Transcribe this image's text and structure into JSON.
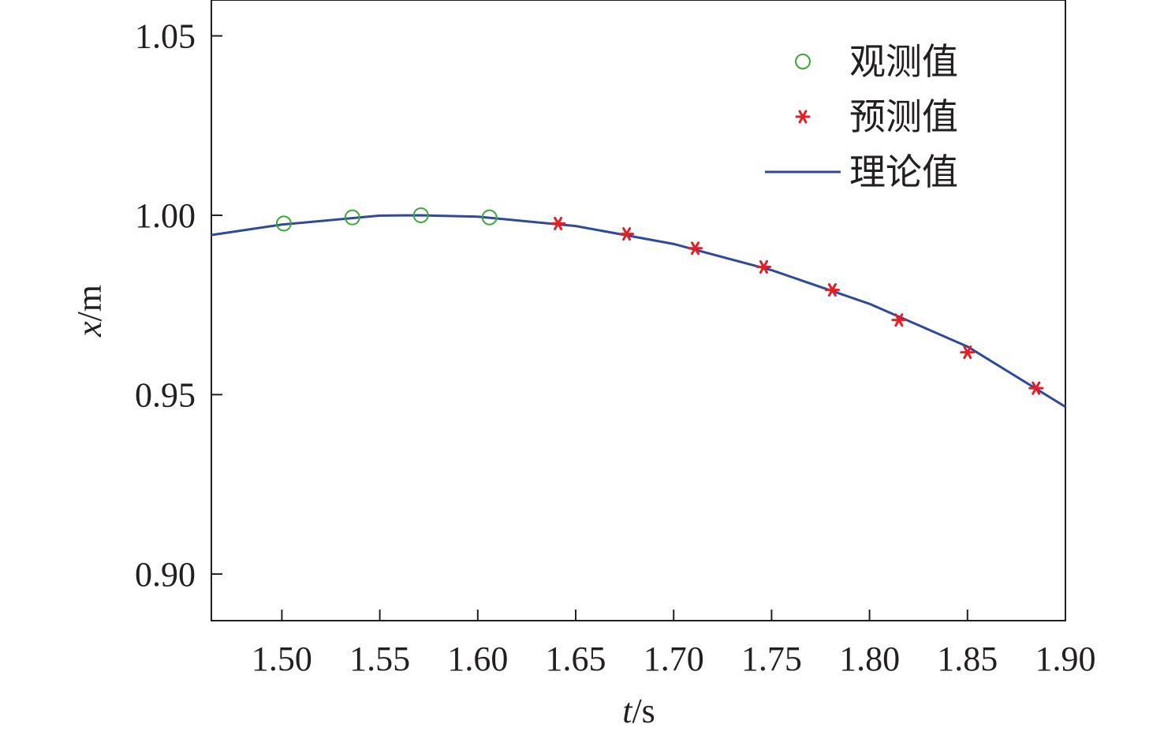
{
  "chart_data": {
    "type": "scatter",
    "xlabel": {
      "var": "t",
      "unit": "/s"
    },
    "ylabel": {
      "var": "x",
      "unit": "/m"
    },
    "xlim": [
      1.464,
      1.9
    ],
    "ylim": [
      0.887,
      1.06
    ],
    "xticks": [
      "1.50",
      "1.55",
      "1.60",
      "1.65",
      "1.70",
      "1.75",
      "1.80",
      "1.85",
      "1.90"
    ],
    "yticks": [
      "0.90",
      "0.95",
      "1.00",
      "1.05"
    ],
    "grid": false,
    "legend_position": "top-right",
    "series": [
      {
        "name": "观测值",
        "marker": "open-circle",
        "color": "#3aaa35",
        "x": [
          1.501,
          1.536,
          1.571,
          1.606
        ],
        "y": [
          0.9977,
          0.9994,
          1.0,
          0.9994
        ]
      },
      {
        "name": "预测值",
        "marker": "asterisk",
        "color": "#e31e24",
        "x": [
          1.641,
          1.676,
          1.711,
          1.746,
          1.781,
          1.815,
          1.85,
          1.885
        ],
        "y": [
          0.9977,
          0.9948,
          0.9908,
          0.9856,
          0.9792,
          0.9708,
          0.9618,
          0.9518
        ]
      },
      {
        "name": "理论值",
        "marker": "line",
        "color": "#2e4a9b",
        "x": [
          1.464,
          1.5,
          1.55,
          1.571,
          1.6,
          1.65,
          1.7,
          1.75,
          1.8,
          1.85,
          1.9
        ],
        "y": [
          0.9945,
          0.9974,
          0.9999,
          1.0,
          0.9996,
          0.997,
          0.992,
          0.9847,
          0.9753,
          0.9634,
          0.9466
        ]
      }
    ]
  }
}
